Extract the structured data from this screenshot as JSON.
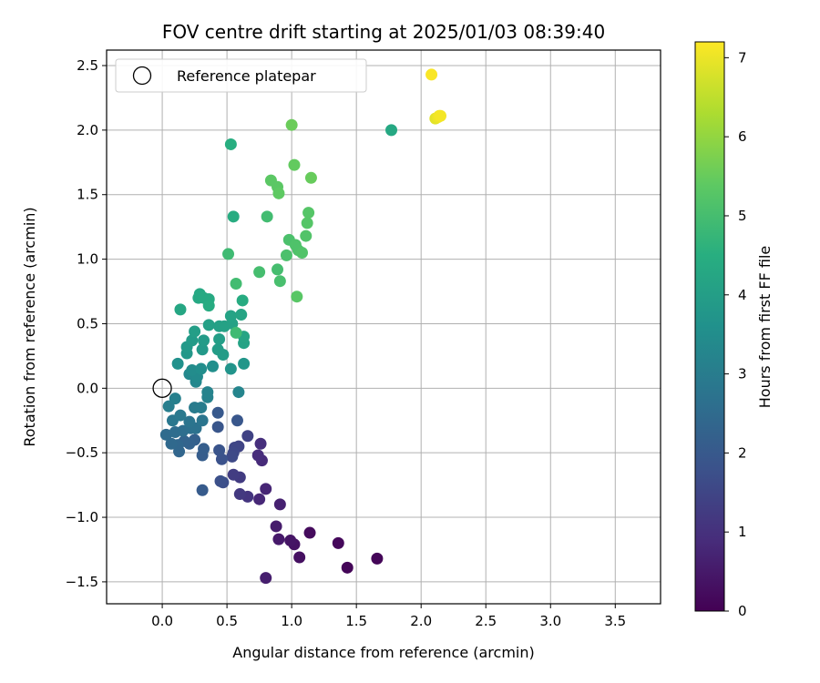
{
  "chart_data": {
    "type": "scatter",
    "title": "FOV centre drift starting at 2025/01/03 08:39:40",
    "xlabel": "Angular distance from reference (arcmin)",
    "ylabel": "Rotation from reference (arcmin)",
    "xlim": [
      -0.43,
      3.85
    ],
    "ylim": [
      -1.67,
      2.62
    ],
    "xticks": [
      0.0,
      0.5,
      1.0,
      1.5,
      2.0,
      2.5,
      3.0,
      3.5
    ],
    "xtick_labels": [
      "0.0",
      "0.5",
      "1.0",
      "1.5",
      "2.0",
      "2.5",
      "3.0",
      "3.5"
    ],
    "yticks": [
      -1.5,
      -1.0,
      -0.5,
      0.0,
      0.5,
      1.0,
      1.5,
      2.0,
      2.5
    ],
    "ytick_labels": [
      "−1.5",
      "−1.0",
      "−0.5",
      "0.0",
      "0.5",
      "1.0",
      "1.5",
      "2.0",
      "2.5"
    ],
    "grid": true,
    "legend": {
      "placement": "top-left",
      "label": "Reference platepar"
    },
    "reference": {
      "x": 0.0,
      "y": 0.0
    },
    "colorbar": {
      "label": "Hours from first FF file",
      "colormap": "viridis",
      "range": [
        0,
        7.2
      ],
      "ticks": [
        0,
        1,
        2,
        3,
        4,
        5,
        6,
        7
      ],
      "tick_labels": [
        "0",
        "1",
        "2",
        "3",
        "4",
        "5",
        "6",
        "7"
      ]
    },
    "points": [
      {
        "x": 1.43,
        "y": -1.39,
        "c": 0.1
      },
      {
        "x": 1.66,
        "y": -1.32,
        "c": 0.1
      },
      {
        "x": 1.36,
        "y": -1.2,
        "c": 0.15
      },
      {
        "x": 1.14,
        "y": -1.12,
        "c": 0.2
      },
      {
        "x": 1.06,
        "y": -1.31,
        "c": 0.3
      },
      {
        "x": 1.02,
        "y": -1.21,
        "c": 0.35
      },
      {
        "x": 0.99,
        "y": -1.18,
        "c": 0.4
      },
      {
        "x": 0.9,
        "y": -1.17,
        "c": 0.5
      },
      {
        "x": 0.88,
        "y": -1.07,
        "c": 0.55
      },
      {
        "x": 0.8,
        "y": -1.47,
        "c": 0.6
      },
      {
        "x": 0.91,
        "y": -0.9,
        "c": 0.65
      },
      {
        "x": 0.8,
        "y": -0.78,
        "c": 0.75
      },
      {
        "x": 0.75,
        "y": -0.86,
        "c": 0.8
      },
      {
        "x": 0.77,
        "y": -0.56,
        "c": 0.85
      },
      {
        "x": 0.74,
        "y": -0.52,
        "c": 0.9
      },
      {
        "x": 0.76,
        "y": -0.43,
        "c": 0.95
      },
      {
        "x": 0.66,
        "y": -0.84,
        "c": 1.1
      },
      {
        "x": 0.6,
        "y": -0.82,
        "c": 1.2
      },
      {
        "x": 0.6,
        "y": -0.69,
        "c": 1.25
      },
      {
        "x": 0.55,
        "y": -0.67,
        "c": 1.3
      },
      {
        "x": 0.66,
        "y": -0.37,
        "c": 1.4
      },
      {
        "x": 0.59,
        "y": -0.45,
        "c": 1.45
      },
      {
        "x": 0.56,
        "y": -0.46,
        "c": 1.5
      },
      {
        "x": 0.55,
        "y": -0.5,
        "c": 1.55
      },
      {
        "x": 0.54,
        "y": -0.53,
        "c": 1.6
      },
      {
        "x": 0.47,
        "y": -0.73,
        "c": 1.7
      },
      {
        "x": 0.45,
        "y": -0.72,
        "c": 1.75
      },
      {
        "x": 0.46,
        "y": -0.55,
        "c": 1.8
      },
      {
        "x": 0.44,
        "y": -0.48,
        "c": 1.85
      },
      {
        "x": 0.43,
        "y": -0.3,
        "c": 1.9
      },
      {
        "x": 0.58,
        "y": -0.25,
        "c": 1.95
      },
      {
        "x": 0.43,
        "y": -0.19,
        "c": 2.0
      },
      {
        "x": 0.31,
        "y": -0.79,
        "c": 2.05
      },
      {
        "x": 0.31,
        "y": -0.52,
        "c": 2.1
      },
      {
        "x": 0.32,
        "y": -0.47,
        "c": 2.15
      },
      {
        "x": 0.25,
        "y": -0.4,
        "c": 2.2
      },
      {
        "x": 0.21,
        "y": -0.43,
        "c": 2.25
      },
      {
        "x": 0.17,
        "y": -0.41,
        "c": 2.3
      },
      {
        "x": 0.13,
        "y": -0.49,
        "c": 2.35
      },
      {
        "x": 0.12,
        "y": -0.44,
        "c": 2.4
      },
      {
        "x": 0.07,
        "y": -0.43,
        "c": 2.45
      },
      {
        "x": 0.03,
        "y": -0.36,
        "c": 2.5
      },
      {
        "x": 0.1,
        "y": -0.34,
        "c": 2.55
      },
      {
        "x": 0.16,
        "y": -0.33,
        "c": 2.6
      },
      {
        "x": 0.22,
        "y": -0.31,
        "c": 2.65
      },
      {
        "x": 0.26,
        "y": -0.31,
        "c": 2.7
      },
      {
        "x": 0.21,
        "y": -0.26,
        "c": 2.75
      },
      {
        "x": 0.31,
        "y": -0.25,
        "c": 2.8
      },
      {
        "x": 0.08,
        "y": -0.25,
        "c": 2.85
      },
      {
        "x": 0.14,
        "y": -0.21,
        "c": 2.9
      },
      {
        "x": 0.25,
        "y": -0.15,
        "c": 2.95
      },
      {
        "x": 0.3,
        "y": -0.15,
        "c": 3.0
      },
      {
        "x": 0.05,
        "y": -0.14,
        "c": 3.05
      },
      {
        "x": 0.1,
        "y": -0.08,
        "c": 3.1
      },
      {
        "x": 0.35,
        "y": -0.07,
        "c": 3.15
      },
      {
        "x": 0.35,
        "y": -0.03,
        "c": 3.2
      },
      {
        "x": 0.59,
        "y": -0.03,
        "c": 3.25
      },
      {
        "x": 0.26,
        "y": 0.05,
        "c": 3.3
      },
      {
        "x": 0.21,
        "y": 0.11,
        "c": 3.35
      },
      {
        "x": 0.27,
        "y": 0.09,
        "c": 3.4
      },
      {
        "x": 0.23,
        "y": 0.14,
        "c": 3.45
      },
      {
        "x": 0.3,
        "y": 0.15,
        "c": 3.5
      },
      {
        "x": 0.39,
        "y": 0.17,
        "c": 3.55
      },
      {
        "x": 0.12,
        "y": 0.19,
        "c": 3.6
      },
      {
        "x": 0.53,
        "y": 0.15,
        "c": 3.7
      },
      {
        "x": 0.63,
        "y": 0.19,
        "c": 3.75
      },
      {
        "x": 0.19,
        "y": 0.27,
        "c": 3.8
      },
      {
        "x": 0.19,
        "y": 0.32,
        "c": 3.85
      },
      {
        "x": 0.31,
        "y": 0.3,
        "c": 3.85
      },
      {
        "x": 0.23,
        "y": 0.37,
        "c": 3.9
      },
      {
        "x": 0.32,
        "y": 0.37,
        "c": 3.9
      },
      {
        "x": 0.43,
        "y": 0.3,
        "c": 3.95
      },
      {
        "x": 0.47,
        "y": 0.26,
        "c": 3.95
      },
      {
        "x": 0.44,
        "y": 0.38,
        "c": 4.0
      },
      {
        "x": 0.25,
        "y": 0.44,
        "c": 4.0
      },
      {
        "x": 0.36,
        "y": 0.49,
        "c": 4.05
      },
      {
        "x": 0.44,
        "y": 0.48,
        "c": 4.05
      },
      {
        "x": 0.48,
        "y": 0.48,
        "c": 4.1
      },
      {
        "x": 0.54,
        "y": 0.5,
        "c": 4.1
      },
      {
        "x": 0.53,
        "y": 0.56,
        "c": 4.15
      },
      {
        "x": 0.63,
        "y": 0.35,
        "c": 4.15
      },
      {
        "x": 0.63,
        "y": 0.4,
        "c": 4.2
      },
      {
        "x": 0.61,
        "y": 0.57,
        "c": 4.2
      },
      {
        "x": 0.14,
        "y": 0.61,
        "c": 4.25
      },
      {
        "x": 0.28,
        "y": 0.7,
        "c": 4.3
      },
      {
        "x": 0.29,
        "y": 0.73,
        "c": 4.3
      },
      {
        "x": 0.32,
        "y": 0.7,
        "c": 4.35
      },
      {
        "x": 0.36,
        "y": 0.69,
        "c": 4.35
      },
      {
        "x": 0.36,
        "y": 0.64,
        "c": 4.4
      },
      {
        "x": 0.62,
        "y": 0.68,
        "c": 4.4
      },
      {
        "x": 0.55,
        "y": 1.33,
        "c": 4.45
      },
      {
        "x": 0.53,
        "y": 1.89,
        "c": 4.5
      },
      {
        "x": 1.77,
        "y": 2.0,
        "c": 4.3
      },
      {
        "x": 0.57,
        "y": 0.43,
        "c": 4.9
      },
      {
        "x": 0.51,
        "y": 1.04,
        "c": 4.9
      },
      {
        "x": 0.57,
        "y": 0.81,
        "c": 4.95
      },
      {
        "x": 0.81,
        "y": 1.33,
        "c": 4.95
      },
      {
        "x": 0.75,
        "y": 0.9,
        "c": 5.0
      },
      {
        "x": 0.89,
        "y": 0.92,
        "c": 5.0
      },
      {
        "x": 0.91,
        "y": 0.83,
        "c": 5.05
      },
      {
        "x": 0.96,
        "y": 1.03,
        "c": 5.1
      },
      {
        "x": 0.98,
        "y": 1.15,
        "c": 5.1
      },
      {
        "x": 1.03,
        "y": 1.11,
        "c": 5.15
      },
      {
        "x": 1.05,
        "y": 1.07,
        "c": 5.15
      },
      {
        "x": 1.08,
        "y": 1.05,
        "c": 5.2
      },
      {
        "x": 1.11,
        "y": 1.18,
        "c": 5.2
      },
      {
        "x": 1.12,
        "y": 1.28,
        "c": 5.25
      },
      {
        "x": 1.13,
        "y": 1.36,
        "c": 5.25
      },
      {
        "x": 1.04,
        "y": 0.71,
        "c": 5.3
      },
      {
        "x": 0.84,
        "y": 1.61,
        "c": 5.35
      },
      {
        "x": 0.89,
        "y": 1.56,
        "c": 5.35
      },
      {
        "x": 0.9,
        "y": 1.51,
        "c": 5.4
      },
      {
        "x": 1.02,
        "y": 1.73,
        "c": 5.45
      },
      {
        "x": 1.15,
        "y": 1.63,
        "c": 5.5
      },
      {
        "x": 1.0,
        "y": 2.04,
        "c": 5.55
      },
      {
        "x": 2.08,
        "y": 2.43,
        "c": 7.15
      },
      {
        "x": 2.11,
        "y": 2.09,
        "c": 6.9
      },
      {
        "x": 2.13,
        "y": 2.1,
        "c": 7.0
      },
      {
        "x": 2.14,
        "y": 2.11,
        "c": 7.05
      },
      {
        "x": 2.15,
        "y": 2.11,
        "c": 7.1
      }
    ]
  }
}
